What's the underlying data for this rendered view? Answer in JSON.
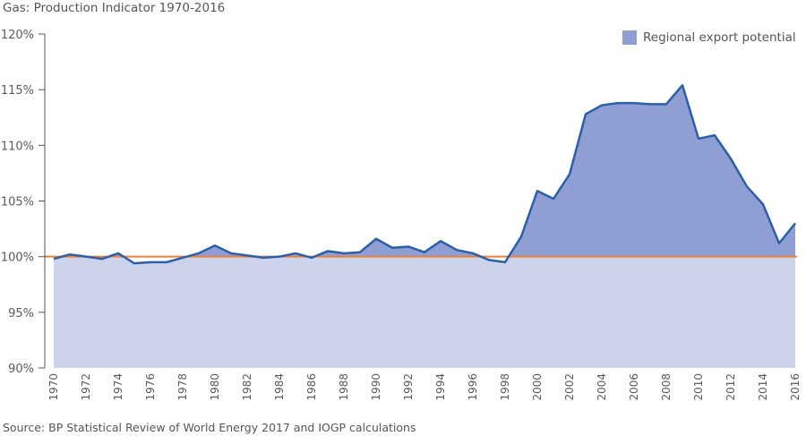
{
  "chart_data": {
    "type": "area",
    "title": "Gas: Production Indicator 1970-2016",
    "source": "Source: BP Statistical Review of World Energy 2017 and IOGP calculations",
    "x": [
      1970,
      1971,
      1972,
      1973,
      1974,
      1975,
      1976,
      1977,
      1978,
      1979,
      1980,
      1981,
      1982,
      1983,
      1984,
      1985,
      1986,
      1987,
      1988,
      1989,
      1990,
      1991,
      1992,
      1993,
      1994,
      1995,
      1996,
      1997,
      1998,
      1999,
      2000,
      2001,
      2002,
      2003,
      2004,
      2005,
      2006,
      2007,
      2008,
      2009,
      2010,
      2011,
      2012,
      2013,
      2014,
      2015,
      2016
    ],
    "series": [
      {
        "name": "Regional export potential",
        "values": [
          99.8,
          100.2,
          100.0,
          99.8,
          100.3,
          99.4,
          99.5,
          99.5,
          99.9,
          100.3,
          101.0,
          100.3,
          100.1,
          99.9,
          100.0,
          100.3,
          99.9,
          100.5,
          100.3,
          100.4,
          101.6,
          100.8,
          100.9,
          100.4,
          101.4,
          100.6,
          100.3,
          99.7,
          99.5,
          101.8,
          105.9,
          105.2,
          107.4,
          112.8,
          113.6,
          113.8,
          113.8,
          113.7,
          113.7,
          115.4,
          110.6,
          110.9,
          108.8,
          106.3,
          104.7,
          101.2,
          103.0
        ],
        "color": "#2b5fa8",
        "fill_above": "#8f9fd4"
      }
    ],
    "reference_line": {
      "value": 100,
      "color": "#e8823a"
    },
    "base_fill": "#ced3ec",
    "ylim": [
      90,
      120
    ],
    "yticks": [
      90,
      95,
      100,
      105,
      110,
      115,
      120
    ],
    "ytick_labels": [
      "90%",
      "95%",
      "100%",
      "105%",
      "110%",
      "115%",
      "120%"
    ],
    "xticks": [
      1970,
      1972,
      1974,
      1976,
      1978,
      1980,
      1982,
      1984,
      1986,
      1988,
      1990,
      1992,
      1994,
      1996,
      1998,
      2000,
      2002,
      2004,
      2006,
      2008,
      2010,
      2012,
      2014,
      2016
    ],
    "xlabel": "",
    "ylabel": "",
    "grid": false,
    "legend_position": "top-right"
  }
}
